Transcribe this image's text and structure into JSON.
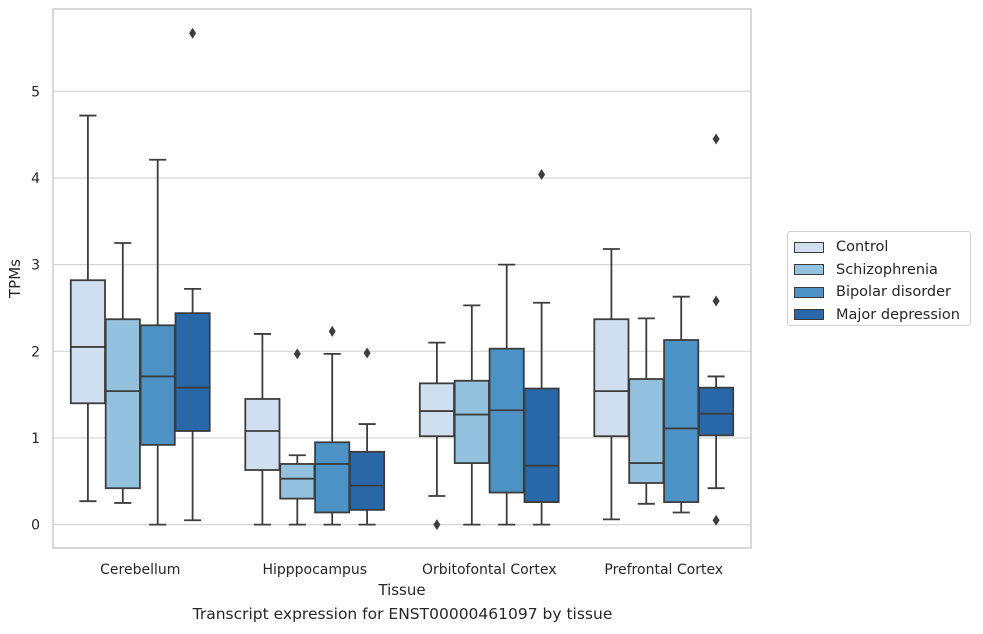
{
  "chart_data": {
    "type": "box",
    "title": "",
    "caption": "Transcript expression for ENST00000461097 by tissue",
    "xlabel": "Tissue",
    "ylabel": "TPMs",
    "ylim": [
      -0.27,
      5.95
    ],
    "yticks": [
      0,
      1,
      2,
      3,
      4,
      5
    ],
    "grid": "horizontal",
    "legend_position": "right",
    "categories": [
      "Cerebellum",
      "Hipppocampus",
      "Orbitofontal Cortex",
      "Prefrontal Cortex"
    ],
    "series": [
      {
        "name": "Control",
        "color": "#cfdff0",
        "boxes": [
          {
            "whisker_low": 0.27,
            "q1": 1.4,
            "median": 2.05,
            "q3": 2.82,
            "whisker_high": 4.72,
            "outliers": []
          },
          {
            "whisker_low": 0.0,
            "q1": 0.63,
            "median": 1.08,
            "q3": 1.45,
            "whisker_high": 2.2,
            "outliers": []
          },
          {
            "whisker_low": 0.33,
            "q1": 1.02,
            "median": 1.31,
            "q3": 1.63,
            "whisker_high": 2.1,
            "outliers": [
              0.0
            ]
          },
          {
            "whisker_low": 0.06,
            "q1": 1.02,
            "median": 1.54,
            "q3": 2.37,
            "whisker_high": 3.18,
            "outliers": []
          }
        ]
      },
      {
        "name": "Schizophrenia",
        "color": "#93c1de",
        "boxes": [
          {
            "whisker_low": 0.25,
            "q1": 0.42,
            "median": 1.54,
            "q3": 2.37,
            "whisker_high": 3.25,
            "outliers": []
          },
          {
            "whisker_low": 0.0,
            "q1": 0.3,
            "median": 0.53,
            "q3": 0.7,
            "whisker_high": 0.8,
            "outliers": [
              1.97
            ]
          },
          {
            "whisker_low": 0.0,
            "q1": 0.71,
            "median": 1.27,
            "q3": 1.66,
            "whisker_high": 2.53,
            "outliers": []
          },
          {
            "whisker_low": 0.24,
            "q1": 0.48,
            "median": 0.71,
            "q3": 1.68,
            "whisker_high": 2.38,
            "outliers": []
          }
        ]
      },
      {
        "name": "Bipolar disorder",
        "color": "#4c92c4",
        "boxes": [
          {
            "whisker_low": 0.0,
            "q1": 0.92,
            "median": 1.71,
            "q3": 2.3,
            "whisker_high": 4.21,
            "outliers": []
          },
          {
            "whisker_low": 0.0,
            "q1": 0.14,
            "median": 0.7,
            "q3": 0.95,
            "whisker_high": 1.97,
            "outliers": [
              2.23
            ]
          },
          {
            "whisker_low": 0.0,
            "q1": 0.37,
            "median": 1.32,
            "q3": 2.03,
            "whisker_high": 3.0,
            "outliers": []
          },
          {
            "whisker_low": 0.14,
            "q1": 0.26,
            "median": 1.11,
            "q3": 2.13,
            "whisker_high": 2.63,
            "outliers": []
          }
        ]
      },
      {
        "name": "Major depression",
        "color": "#2868a8",
        "boxes": [
          {
            "whisker_low": 0.05,
            "q1": 1.08,
            "median": 1.58,
            "q3": 2.44,
            "whisker_high": 2.72,
            "outliers": [
              5.67
            ]
          },
          {
            "whisker_low": 0.0,
            "q1": 0.17,
            "median": 0.45,
            "q3": 0.84,
            "whisker_high": 1.16,
            "outliers": [
              1.98
            ]
          },
          {
            "whisker_low": 0.0,
            "q1": 0.26,
            "median": 0.68,
            "q3": 1.57,
            "whisker_high": 2.56,
            "outliers": [
              4.04
            ]
          },
          {
            "whisker_low": 0.42,
            "q1": 1.03,
            "median": 1.28,
            "q3": 1.58,
            "whisker_high": 1.71,
            "outliers": [
              0.05,
              2.58,
              4.45
            ]
          }
        ]
      }
    ]
  }
}
